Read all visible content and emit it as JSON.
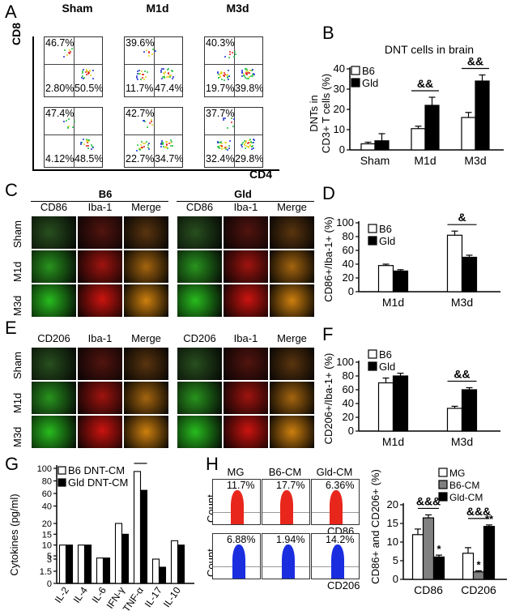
{
  "panels": {
    "A": "A",
    "B": "B",
    "C": "C",
    "D": "D",
    "E": "E",
    "F": "F",
    "G": "G",
    "H": "H"
  },
  "panelA": {
    "columns": [
      "Sham",
      "M1d",
      "M3d"
    ],
    "y_axis": "CD8",
    "x_axis": "CD4",
    "rows": [
      [
        {
          "ul": "46.7%",
          "ll": "2.80%",
          "lr": "50.5%"
        },
        {
          "ul": "39.6%",
          "ll": "11.7%",
          "lr": "47.4%"
        },
        {
          "ul": "40.3%",
          "ll": "19.7%",
          "lr": "39.8%"
        }
      ],
      [
        {
          "ul": "47.4%",
          "ll": "4.12%",
          "lr": "48.5%"
        },
        {
          "ul": "42.7%",
          "ll": "22.7%",
          "lr": "34.7%"
        },
        {
          "ul": "37.7%",
          "ll": "32.4%",
          "lr": "29.8%"
        }
      ]
    ]
  },
  "panelC": {
    "groups": [
      "B6",
      "Gld"
    ],
    "headers": [
      "CD86",
      "Iba-1",
      "Merge"
    ],
    "rows": [
      "Sham",
      "M1d",
      "M3d"
    ]
  },
  "panelE": {
    "headers_left": [
      "CD206",
      "Iba-1",
      "Merge"
    ],
    "headers_right": [
      "CD206",
      "Iba-1",
      "Merge"
    ],
    "rows": [
      "Sham",
      "M1d",
      "M3d"
    ]
  },
  "panelH": {
    "columns": [
      "MG",
      "B6-CM",
      "Gld-CM"
    ],
    "count_label": "Count",
    "top_row": {
      "pcts": [
        "11.7%",
        "17.7%",
        "6.36%"
      ],
      "marker": "CD86",
      "color": "#e8261c"
    },
    "bottom_row": {
      "pcts": [
        "6.88%",
        "1.94%",
        "14.2%"
      ],
      "marker": "CD206",
      "color": "#1a2ee0"
    }
  },
  "chart_data": [
    {
      "panel": "B",
      "type": "bar",
      "title": "DNT cells in brain",
      "ylabel": "DNTs in CD3+ T cells (%)",
      "ylim": [
        0,
        40
      ],
      "yticks": [
        "0",
        "10",
        "20",
        "30",
        "40"
      ],
      "categories": [
        "Sham",
        "M1d",
        "M3d"
      ],
      "series": [
        {
          "name": "B6",
          "values": [
            3,
            10.5,
            16
          ],
          "errors": [
            0.8,
            1.2,
            2.5
          ],
          "color": "#ffffff"
        },
        {
          "name": "Gld",
          "values": [
            4.5,
            22,
            34
          ],
          "errors": [
            3.5,
            4,
            3
          ],
          "color": "#000000"
        }
      ],
      "annotations": [
        {
          "text": "&&",
          "category": "M1d"
        },
        {
          "text": "&&",
          "category": "M3d"
        }
      ]
    },
    {
      "panel": "D",
      "type": "bar",
      "ylabel": "CD86+/Iba-1+ (%)",
      "ylim": [
        0,
        100
      ],
      "yticks": [
        "0",
        "20",
        "40",
        "60",
        "80",
        "100"
      ],
      "categories": [
        "M1d",
        "M3d"
      ],
      "series": [
        {
          "name": "B6",
          "values": [
            38,
            82
          ],
          "errors": [
            2,
            6
          ],
          "color": "#ffffff"
        },
        {
          "name": "Gld",
          "values": [
            30,
            50
          ],
          "errors": [
            2,
            3
          ],
          "color": "#000000"
        }
      ],
      "annotations": [
        {
          "text": "&",
          "category": "M3d"
        }
      ]
    },
    {
      "panel": "F",
      "type": "bar",
      "ylabel": "CD206+/Iba-1+ (%)",
      "ylim": [
        0,
        100
      ],
      "yticks": [
        "0",
        "20",
        "40",
        "60",
        "80",
        "100"
      ],
      "categories": [
        "M1d",
        "M3d"
      ],
      "series": [
        {
          "name": "B6",
          "values": [
            70,
            33
          ],
          "errors": [
            7,
            3
          ],
          "color": "#ffffff"
        },
        {
          "name": "Gld",
          "values": [
            80,
            60
          ],
          "errors": [
            4,
            3
          ],
          "color": "#000000"
        }
      ],
      "annotations": [
        {
          "text": "&&",
          "category": "M3d"
        }
      ]
    },
    {
      "panel": "G",
      "type": "bar",
      "ylabel": "Cytokines (pg/ml)",
      "yticks": [
        "0",
        "1.5",
        "3",
        "5",
        "10",
        "15",
        "20",
        "40",
        "60",
        "80",
        "100"
      ],
      "categories": [
        "IL-2",
        "IL-4",
        "IL-6",
        "IFN-γ",
        "TNF-α",
        "IL-17",
        "IL-10"
      ],
      "series": [
        {
          "name": "B6 DNT-CM",
          "values": [
            10,
            10,
            4,
            20,
            95,
            3,
            12
          ],
          "color": "#ffffff"
        },
        {
          "name": "Gld DNT-CM",
          "values": [
            10,
            10,
            4,
            15,
            65,
            2,
            10
          ],
          "color": "#000000"
        }
      ],
      "annotations": [
        {
          "text": "&&",
          "category": "TNF-α"
        }
      ]
    },
    {
      "panel": "H",
      "type": "bar",
      "ylabel": "CD86+ and CD206+ (%)",
      "ylim": [
        0,
        20
      ],
      "yticks": [
        "0",
        "5",
        "10",
        "15",
        "20"
      ],
      "categories": [
        "CD86",
        "CD206"
      ],
      "series": [
        {
          "name": "MG",
          "values": [
            12,
            7
          ],
          "errors": [
            1.5,
            1.5
          ],
          "color": "#ffffff"
        },
        {
          "name": "B6-CM",
          "values": [
            16.5,
            2
          ],
          "errors": [
            0.8,
            0.3
          ],
          "color": "#808080"
        },
        {
          "name": "Gld-CM",
          "values": [
            6,
            14.2
          ],
          "errors": [
            0.5,
            0.4
          ],
          "color": "#000000"
        }
      ],
      "annotations": [
        {
          "text": "&&&",
          "category": "CD86"
        },
        {
          "text": "&&&",
          "category": "CD206"
        },
        {
          "text": "*",
          "category": "CD86",
          "series": "Gld-CM"
        },
        {
          "text": "*",
          "category": "CD206",
          "series": "B6-CM"
        },
        {
          "text": "**",
          "category": "CD206",
          "series": "Gld-CM"
        }
      ]
    }
  ]
}
